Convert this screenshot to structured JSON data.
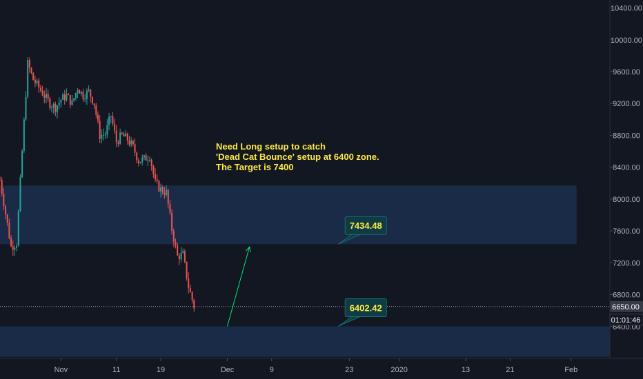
{
  "colors": {
    "background": "#131722",
    "axis_panel": "#131722",
    "axis_text": "#b2b5be",
    "candle_up": "#26a69a",
    "candle_down": "#ef5350",
    "zone_fill": "#1e3354",
    "callout_fill": "#0f3b44",
    "callout_border": "#1b6b6a",
    "annotation_text": "#ffeb3b",
    "arrow": "#00e676",
    "price_tag": "#363a45",
    "timer_tag": "#131722"
  },
  "annotation": {
    "lines": [
      "Need Long setup to catch",
      "'Dead Cat Bounce' setup at 6400 zone.",
      "The Target is 7400"
    ]
  },
  "price_tags": {
    "current": "6650.00",
    "countdown": "01:01:46"
  },
  "chart_data": {
    "type": "candlestick",
    "y_axis": {
      "range": [
        6000,
        10500
      ],
      "ticks": [
        "10400.00",
        "10000.00",
        "9600.00",
        "9200.00",
        "8800.00",
        "8400.00",
        "8000.00",
        "7600.00",
        "7200.00",
        "6800.00",
        "6400.00"
      ]
    },
    "x_axis": {
      "range": [
        "2019-10-21",
        "2020-02-08"
      ],
      "ticks": [
        {
          "date": "2019-11-01",
          "label": "Nov"
        },
        {
          "date": "2019-11-11",
          "label": "11"
        },
        {
          "date": "2019-11-19",
          "label": "19"
        },
        {
          "date": "2019-12-01",
          "label": "Dec"
        },
        {
          "date": "2019-12-09",
          "label": "9"
        },
        {
          "date": "2019-12-23",
          "label": "23"
        },
        {
          "date": "2020-01-01",
          "label": "2020"
        },
        {
          "date": "2020-01-13",
          "label": "13"
        },
        {
          "date": "2020-01-21",
          "label": "21"
        },
        {
          "date": "2020-02-01",
          "label": "Feb"
        }
      ]
    },
    "zones": [
      {
        "name": "upper-zone",
        "low": 7434.48,
        "high": 8170,
        "end": "2020-02-02"
      },
      {
        "name": "lower-zone",
        "low": 6020,
        "high": 6402.42,
        "end": "2020-02-08"
      }
    ],
    "callouts": [
      {
        "label": "7434.48",
        "price": 7434.48,
        "date": "2019-12-21"
      },
      {
        "label": "6402.42",
        "price": 6402.42,
        "date": "2019-12-21"
      }
    ],
    "target_arrow": {
      "from": {
        "date": "2019-12-01",
        "price": 6402.42
      },
      "to": {
        "date": "2019-12-05",
        "price": 7400
      }
    },
    "current_price": 6650,
    "ohlc_path": [
      [
        "2019-10-21",
        8240
      ],
      [
        "2019-10-23",
        7400
      ],
      [
        "2019-10-24",
        7450
      ],
      [
        "2019-10-25",
        8600
      ],
      [
        "2019-10-26",
        9700
      ],
      [
        "2019-10-27",
        9500
      ],
      [
        "2019-10-28",
        9400
      ],
      [
        "2019-10-29",
        9300
      ],
      [
        "2019-10-30",
        9200
      ],
      [
        "2019-10-31",
        9150
      ],
      [
        "2019-11-01",
        9250
      ],
      [
        "2019-11-02",
        9300
      ],
      [
        "2019-11-03",
        9200
      ],
      [
        "2019-11-04",
        9400
      ],
      [
        "2019-11-05",
        9300
      ],
      [
        "2019-11-06",
        9350
      ],
      [
        "2019-11-07",
        9200
      ],
      [
        "2019-11-08",
        8800
      ],
      [
        "2019-11-09",
        8820
      ],
      [
        "2019-11-10",
        9050
      ],
      [
        "2019-11-11",
        8720
      ],
      [
        "2019-11-12",
        8800
      ],
      [
        "2019-11-13",
        8750
      ],
      [
        "2019-11-14",
        8650
      ],
      [
        "2019-11-15",
        8480
      ],
      [
        "2019-11-16",
        8500
      ],
      [
        "2019-11-17",
        8550
      ],
      [
        "2019-11-18",
        8200
      ],
      [
        "2019-11-19",
        8120
      ],
      [
        "2019-11-20",
        8080
      ],
      [
        "2019-11-21",
        7620
      ],
      [
        "2019-11-22",
        7280
      ],
      [
        "2019-11-23",
        7300
      ],
      [
        "2019-11-24",
        6900
      ],
      [
        "2019-11-25",
        6650
      ]
    ]
  }
}
